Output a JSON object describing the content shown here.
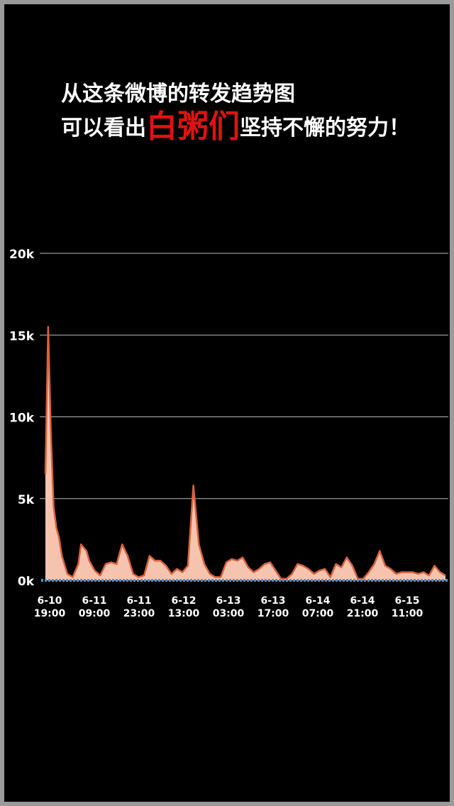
{
  "headline": {
    "line1": "从这条微博的转发趋势图",
    "line2_before": "可以看出",
    "line2_highlight": "白粥们",
    "line2_after": "坚持不懈的努力！"
  },
  "colors": {
    "background": "#000000",
    "frame": "#9a9a9a",
    "text": "#ffffff",
    "highlight": "#e01212",
    "area_fill": "#f6c3ae",
    "area_line": "#d8623c",
    "baseline": "#4a90d9",
    "grid": "#bbbbbb"
  },
  "chart_data": {
    "type": "area",
    "title": "",
    "xlabel": "",
    "ylabel": "",
    "ylim": [
      0,
      20000
    ],
    "yticks": [
      {
        "value": 0,
        "label": "0k"
      },
      {
        "value": 5000,
        "label": "5k"
      },
      {
        "value": 10000,
        "label": "10k"
      },
      {
        "value": 15000,
        "label": "15k"
      },
      {
        "value": 20000,
        "label": "20k"
      }
    ],
    "grid": true,
    "xticks": [
      {
        "date": "6-10",
        "time": "19:00"
      },
      {
        "date": "6-11",
        "time": "09:00"
      },
      {
        "date": "6-11",
        "time": "23:00"
      },
      {
        "date": "6-12",
        "time": "13:00"
      },
      {
        "date": "6-13",
        "time": "03:00"
      },
      {
        "date": "6-13",
        "time": "17:00"
      },
      {
        "date": "6-14",
        "time": "07:00"
      },
      {
        "date": "6-14",
        "time": "21:00"
      },
      {
        "date": "6-15",
        "time": "11:00"
      }
    ],
    "x_hours": [
      0,
      1,
      2,
      3,
      4,
      5,
      6,
      8,
      10,
      12,
      13,
      15,
      16,
      18,
      20,
      22,
      24,
      26,
      28,
      30,
      32,
      34,
      36,
      38,
      40,
      42,
      44,
      46,
      48,
      50,
      52,
      54,
      56,
      58,
      60,
      62,
      64,
      66,
      68,
      70,
      72,
      74,
      76,
      78,
      80,
      82,
      84,
      86,
      88,
      90,
      92,
      94,
      96,
      98,
      100,
      102,
      104,
      106,
      108,
      110,
      112,
      114,
      116,
      118,
      120,
      122,
      124,
      126,
      128,
      130,
      132,
      134,
      136,
      138,
      140,
      142,
      144,
      146
    ],
    "values": [
      6500,
      15500,
      9000,
      4500,
      3200,
      2600,
      1500,
      400,
      200,
      1000,
      2200,
      1800,
      1200,
      600,
      300,
      1000,
      1100,
      1000,
      2200,
      1500,
      400,
      200,
      300,
      1500,
      1200,
      1200,
      900,
      400,
      700,
      500,
      900,
      5800,
      2200,
      1000,
      400,
      200,
      200,
      1100,
      1300,
      1200,
      1400,
      800,
      500,
      700,
      1000,
      1100,
      600,
      100,
      100,
      400,
      1000,
      900,
      700,
      400,
      600,
      700,
      200,
      1000,
      800,
      1400,
      900,
      100,
      100,
      500,
      1000,
      1800,
      900,
      700,
      400,
      500,
      500,
      500,
      400,
      500,
      300,
      900,
      500,
      300
    ]
  }
}
